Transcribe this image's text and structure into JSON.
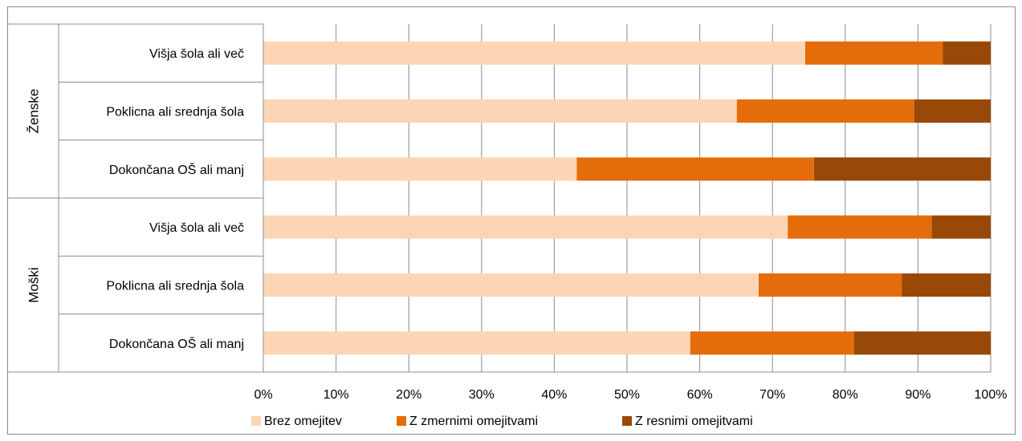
{
  "chart_data": {
    "type": "bar",
    "orientation": "horizontal",
    "stacked": "percent",
    "groups": [
      {
        "label": "Ženske",
        "categories": [
          "Višja šola ali več",
          "Poklicna ali srednja šola",
          "Dokončana OŠ ali manj"
        ]
      },
      {
        "label": "Moški",
        "categories": [
          "Višja šola ali več",
          "Poklicna ali srednja šola",
          "Dokončana OŠ ali manj"
        ]
      }
    ],
    "series": [
      {
        "name": "Brez omejitev",
        "color": "#fcd5b4",
        "values": [
          74.5,
          65.1,
          43.1,
          72.1,
          68.1,
          58.7
        ]
      },
      {
        "name": "Z zmernimi omejitvami",
        "color": "#e46c0a",
        "values": [
          18.9,
          24.4,
          32.6,
          19.8,
          19.7,
          22.5
        ]
      },
      {
        "name": "Z resnimi omejitvami",
        "color": "#984807",
        "values": [
          6.6,
          10.5,
          24.3,
          8.1,
          12.2,
          18.8
        ]
      }
    ],
    "xlim": [
      0,
      100
    ],
    "x_ticks": [
      "0%",
      "10%",
      "20%",
      "30%",
      "40%",
      "50%",
      "60%",
      "70%",
      "80%",
      "90%",
      "100%"
    ],
    "grid": true,
    "legend_position": "bottom"
  }
}
